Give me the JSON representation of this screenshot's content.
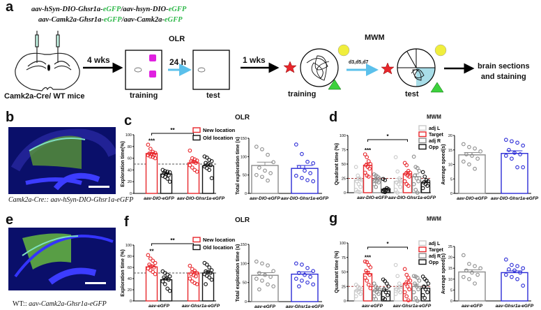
{
  "panel_labels": {
    "a": "a",
    "b": "b",
    "c": "c",
    "d": "d",
    "e": "e",
    "f": "f",
    "g": "g"
  },
  "panel_a": {
    "construct_line1": [
      "aav-hSyn-DIO-Ghsr1a-",
      "eGFP",
      "/aav-hsyn-DIO-",
      "eGFP"
    ],
    "construct_line2": [
      "aav-Camk2a-Ghsr1a-",
      "eGFP",
      "/aav-Camk2a-",
      "eGFP"
    ],
    "mice_label": "Camk2a-Cre/ WT mice",
    "arrow1": "4 wks",
    "olr_title": "OLR",
    "olr_training": "training",
    "arrow2": "24 h",
    "olr_test": "test",
    "arrow3": "1 wks",
    "mwm_title": "MWM",
    "mwm_training": "training",
    "arrow4": "d3,d5,d7",
    "mwm_test": "test",
    "final_line1": "brain sections",
    "final_line2": "and staining"
  },
  "panel_b": {
    "caption_a": "Camk2a-Cre::",
    "caption_b": " aav-hSyn-DIO-Ghsr1a-eGFP"
  },
  "panel_e": {
    "caption_a": "WT::",
    "caption_b": " aav-Camk2a-Ghsr1a-eGFP"
  },
  "titles": {
    "c": "OLR",
    "d": "MWM",
    "f": "OLR",
    "g": "MWM"
  },
  "colors": {
    "red": "#e8262b",
    "black": "#111111",
    "gray": "#8c8c8c",
    "light": "#c9c9c9",
    "blue": "#2a2ad6",
    "gfp": "#2fb84a"
  },
  "chart_data": [
    {
      "id": "c1",
      "type": "bar",
      "ylabel": "Exploration time(%)",
      "ylim": [
        0,
        100
      ],
      "yticks": [
        0,
        20,
        40,
        60,
        80,
        100
      ],
      "refline": 50,
      "categories": [
        "aav-DIO-eGFP",
        "aav-DIO-Ghsr1a-eGFP"
      ],
      "series": [
        {
          "name": "New location",
          "color": "#e8262b",
          "values": [
            68,
            52
          ],
          "sem": [
            2,
            3
          ],
          "points": [
            [
              83,
              76,
              71,
              69,
              68,
              67,
              66,
              65,
              63,
              62,
              60
            ],
            [
              73,
              60,
              58,
              56,
              55,
              54,
              52,
              48,
              44,
              40,
              37
            ]
          ]
        },
        {
          "name": "Old location",
          "color": "#111111",
          "values": [
            33,
            47
          ],
          "sem": [
            2,
            3
          ],
          "points": [
            [
              40,
              38,
              37,
              36,
              35,
              33,
              31,
              30,
              28,
              25,
              20
            ],
            [
              63,
              61,
              57,
              55,
              52,
              50,
              48,
              46,
              43,
              40,
              26
            ]
          ]
        }
      ],
      "bracket": {
        "label": "**"
      },
      "stars": [
        {
          "group": 0,
          "series": 0,
          "label": "***"
        }
      ]
    },
    {
      "id": "c2",
      "type": "bar",
      "ylabel": "Total exploration time (s)",
      "ylim": [
        0,
        150
      ],
      "yticks": [
        0,
        50,
        100,
        150
      ],
      "categories": [
        "aav-DIO-eGFP",
        "aav-DIO-Ghsr1a-eGFP"
      ],
      "series": [
        {
          "name": "",
          "colors": [
            "#8c8c8c",
            "#2a2ad6"
          ],
          "values": [
            76,
            68
          ],
          "sem": [
            9,
            8
          ],
          "points": [
            [
              127,
              120,
              105,
              85,
              70,
              62,
              55,
              50,
              45,
              35
            ],
            [
              133,
              107,
              86,
              82,
              72,
              62,
              55,
              48,
              42,
              36,
              33
            ]
          ]
        }
      ]
    },
    {
      "id": "d1",
      "type": "bar",
      "ylabel": "Quadrant time (%)",
      "ylim": [
        0,
        100
      ],
      "yticks": [
        0,
        25,
        50,
        75,
        100
      ],
      "refline": 25,
      "categories": [
        "aav-DIO-eGFP",
        "aav-DIO-Ghsr1a-eGFP"
      ],
      "series": [
        {
          "name": "adj L",
          "color": "#c9c9c9",
          "values": [
            22,
            20
          ],
          "sem": [
            4,
            5
          ],
          "points": [
            [
              45,
              30,
              25,
              22,
              20,
              15,
              10,
              5,
              2,
              1
            ],
            [
              62,
              37,
              25,
              20,
              18,
              15,
              10,
              5,
              0
            ]
          ]
        },
        {
          "name": "Target",
          "color": "#e8262b",
          "values": [
            48,
            33
          ],
          "sem": [
            4,
            4
          ],
          "points": [
            [
              67,
              62,
              55,
              50,
              48,
              45,
              42,
              35,
              30,
              28
            ],
            [
              52,
              48,
              38,
              35,
              33,
              30,
              28,
              20,
              15,
              12
            ]
          ]
        },
        {
          "name": "adj R",
          "color": "#8c8c8c",
          "values": [
            23,
            28
          ],
          "sem": [
            3,
            5
          ],
          "points": [
            [
              32,
              30,
              28,
              25,
              22,
              20,
              18,
              15,
              10
            ],
            [
              63,
              45,
              43,
              38,
              30,
              25,
              20,
              15,
              5,
              0
            ]
          ]
        },
        {
          "name": "Opp",
          "color": "#111111",
          "values": [
            6,
            18
          ],
          "sem": [
            2,
            3
          ],
          "points": [
            [
              24,
              22,
              8,
              6,
              5,
              4,
              3,
              2,
              1
            ],
            [
              36,
              28,
              22,
              20,
              18,
              15,
              12,
              8
            ]
          ]
        }
      ],
      "bracket": {
        "label": "*"
      },
      "stars": [
        {
          "group": 0,
          "series": 1,
          "label": "***"
        }
      ]
    },
    {
      "id": "d2",
      "type": "bar",
      "ylabel": "Average speed(s)",
      "ylim": [
        0,
        20
      ],
      "yticks": [
        0,
        5,
        10,
        15,
        20
      ],
      "categories": [
        "aav-DIO-eGFP",
        "aav-DIO-Ghsr1a-eGFP"
      ],
      "series": [
        {
          "name": "",
          "colors": [
            "#8c8c8c",
            "#2a2ad6"
          ],
          "values": [
            13.3,
            13.8
          ],
          "sem": [
            0.8,
            0.9
          ],
          "points": [
            [
              17,
              16,
              15.5,
              14.5,
              13.5,
              13,
              12,
              11,
              10,
              8.5
            ],
            [
              18.5,
              18,
              17.5,
              16.5,
              15,
              14,
              13.5,
              13,
              12,
              9,
              9
            ]
          ]
        }
      ]
    },
    {
      "id": "f1",
      "type": "bar",
      "ylabel": "Exploration time (%)",
      "ylim": [
        0,
        100
      ],
      "yticks": [
        0,
        20,
        40,
        60,
        80,
        100
      ],
      "refline": 50,
      "categories": [
        "aav-eGFP",
        "aav-Ghsr1a-eGFP"
      ],
      "series": [
        {
          "name": "New location",
          "color": "#e8262b",
          "values": [
            61,
            50
          ],
          "sem": [
            3,
            3
          ],
          "points": [
            [
              82,
              76,
              72,
              68,
              65,
              62,
              60,
              58,
              55,
              52,
              48
            ],
            [
              63,
              57,
              54,
              50,
              48,
              46,
              44,
              40,
              35,
              32,
              30
            ]
          ]
        },
        {
          "name": "Old location",
          "color": "#111111",
          "values": [
            38,
            50
          ],
          "sem": [
            3,
            3
          ],
          "points": [
            [
              53,
              50,
              47,
              44,
              42,
              40,
              38,
              35,
              30,
              22,
              18
            ],
            [
              68,
              65,
              60,
              55,
              53,
              52,
              50,
              48,
              45,
              42,
              38,
              30
            ]
          ]
        }
      ],
      "bracket": {
        "label": "**"
      },
      "stars": [
        {
          "group": 0,
          "series": 0,
          "label": "**"
        }
      ]
    },
    {
      "id": "f2",
      "type": "bar",
      "ylabel": "Total exploration time (s)",
      "ylim": [
        0,
        150
      ],
      "yticks": [
        0,
        50,
        100,
        150
      ],
      "categories": [
        "aav-eGFP",
        "aav-Ghsr1a-eGFP"
      ],
      "series": [
        {
          "name": "",
          "colors": [
            "#8c8c8c",
            "#2a2ad6"
          ],
          "values": [
            69,
            72
          ],
          "sem": [
            7,
            6
          ],
          "points": [
            [
              105,
              100,
              95,
              80,
              75,
              70,
              65,
              60,
              55,
              45,
              40,
              32
            ],
            [
              100,
              97,
              88,
              80,
              75,
              70,
              65,
              60,
              55,
              50,
              45,
              40
            ]
          ]
        }
      ]
    },
    {
      "id": "g1",
      "type": "bar",
      "ylabel": "Quadrant time (%)",
      "ylim": [
        0,
        100
      ],
      "yticks": [
        0,
        25,
        50,
        75,
        100
      ],
      "refline": 25,
      "categories": [
        "aav-eGFP",
        "aav-Ghsr1a-eGFP"
      ],
      "series": [
        {
          "name": "adj L",
          "color": "#c9c9c9",
          "values": [
            18,
            22
          ],
          "sem": [
            2,
            4
          ],
          "points": [
            [
              28,
              25,
              22,
              20,
              18,
              15,
              12,
              8
            ],
            [
              62,
              43,
              30,
              25,
              20,
              18,
              15,
              12
            ]
          ]
        },
        {
          "name": "Target",
          "color": "#e8262b",
          "values": [
            47,
            30
          ],
          "sem": [
            4,
            5
          ],
          "points": [
            [
              68,
              67,
              62,
              58,
              52,
              48,
              45,
              40,
              35,
              28,
              22
            ],
            [
              55,
              45,
              40,
              35,
              30,
              25,
              20,
              15,
              8,
              1
            ]
          ]
        },
        {
          "name": "adj R",
          "color": "#8c8c8c",
          "values": [
            18,
            25
          ],
          "sem": [
            3,
            4
          ],
          "points": [
            [
              30,
              25,
              22,
              20,
              18,
              15,
              12,
              8,
              3
            ],
            [
              43,
              42,
              40,
              35,
              30,
              25,
              20,
              15,
              5,
              0
            ]
          ]
        },
        {
          "name": "Opp",
          "color": "#111111",
          "values": [
            17,
            22
          ],
          "sem": [
            3,
            4
          ],
          "points": [
            [
              37,
              34,
              30,
              25,
              20,
              15,
              10,
              5,
              3
            ],
            [
              42,
              38,
              35,
              30,
              25,
              20,
              15,
              10,
              5
            ]
          ]
        }
      ],
      "bracket": {
        "label": "*"
      },
      "stars": [
        {
          "group": 0,
          "series": 1,
          "label": "***"
        }
      ]
    },
    {
      "id": "g2",
      "type": "bar",
      "ylabel": "Average speed(s)",
      "ylim": [
        0,
        25
      ],
      "yticks": [
        0,
        5,
        10,
        15,
        20,
        25
      ],
      "categories": [
        "aav-eGFP",
        "aav-Ghsr1a-eGFP"
      ],
      "series": [
        {
          "name": "",
          "colors": [
            "#8c8c8c",
            "#2a2ad6"
          ],
          "values": [
            13.3,
            13
          ],
          "sem": [
            1,
            0.8
          ],
          "points": [
            [
              21,
              17,
              16,
              15,
              14,
              13,
              12,
              11,
              10,
              8
            ],
            [
              19,
              16.5,
              16,
              15,
              14.5,
              14,
              13,
              12,
              11,
              10,
              7
            ]
          ]
        }
      ]
    }
  ]
}
